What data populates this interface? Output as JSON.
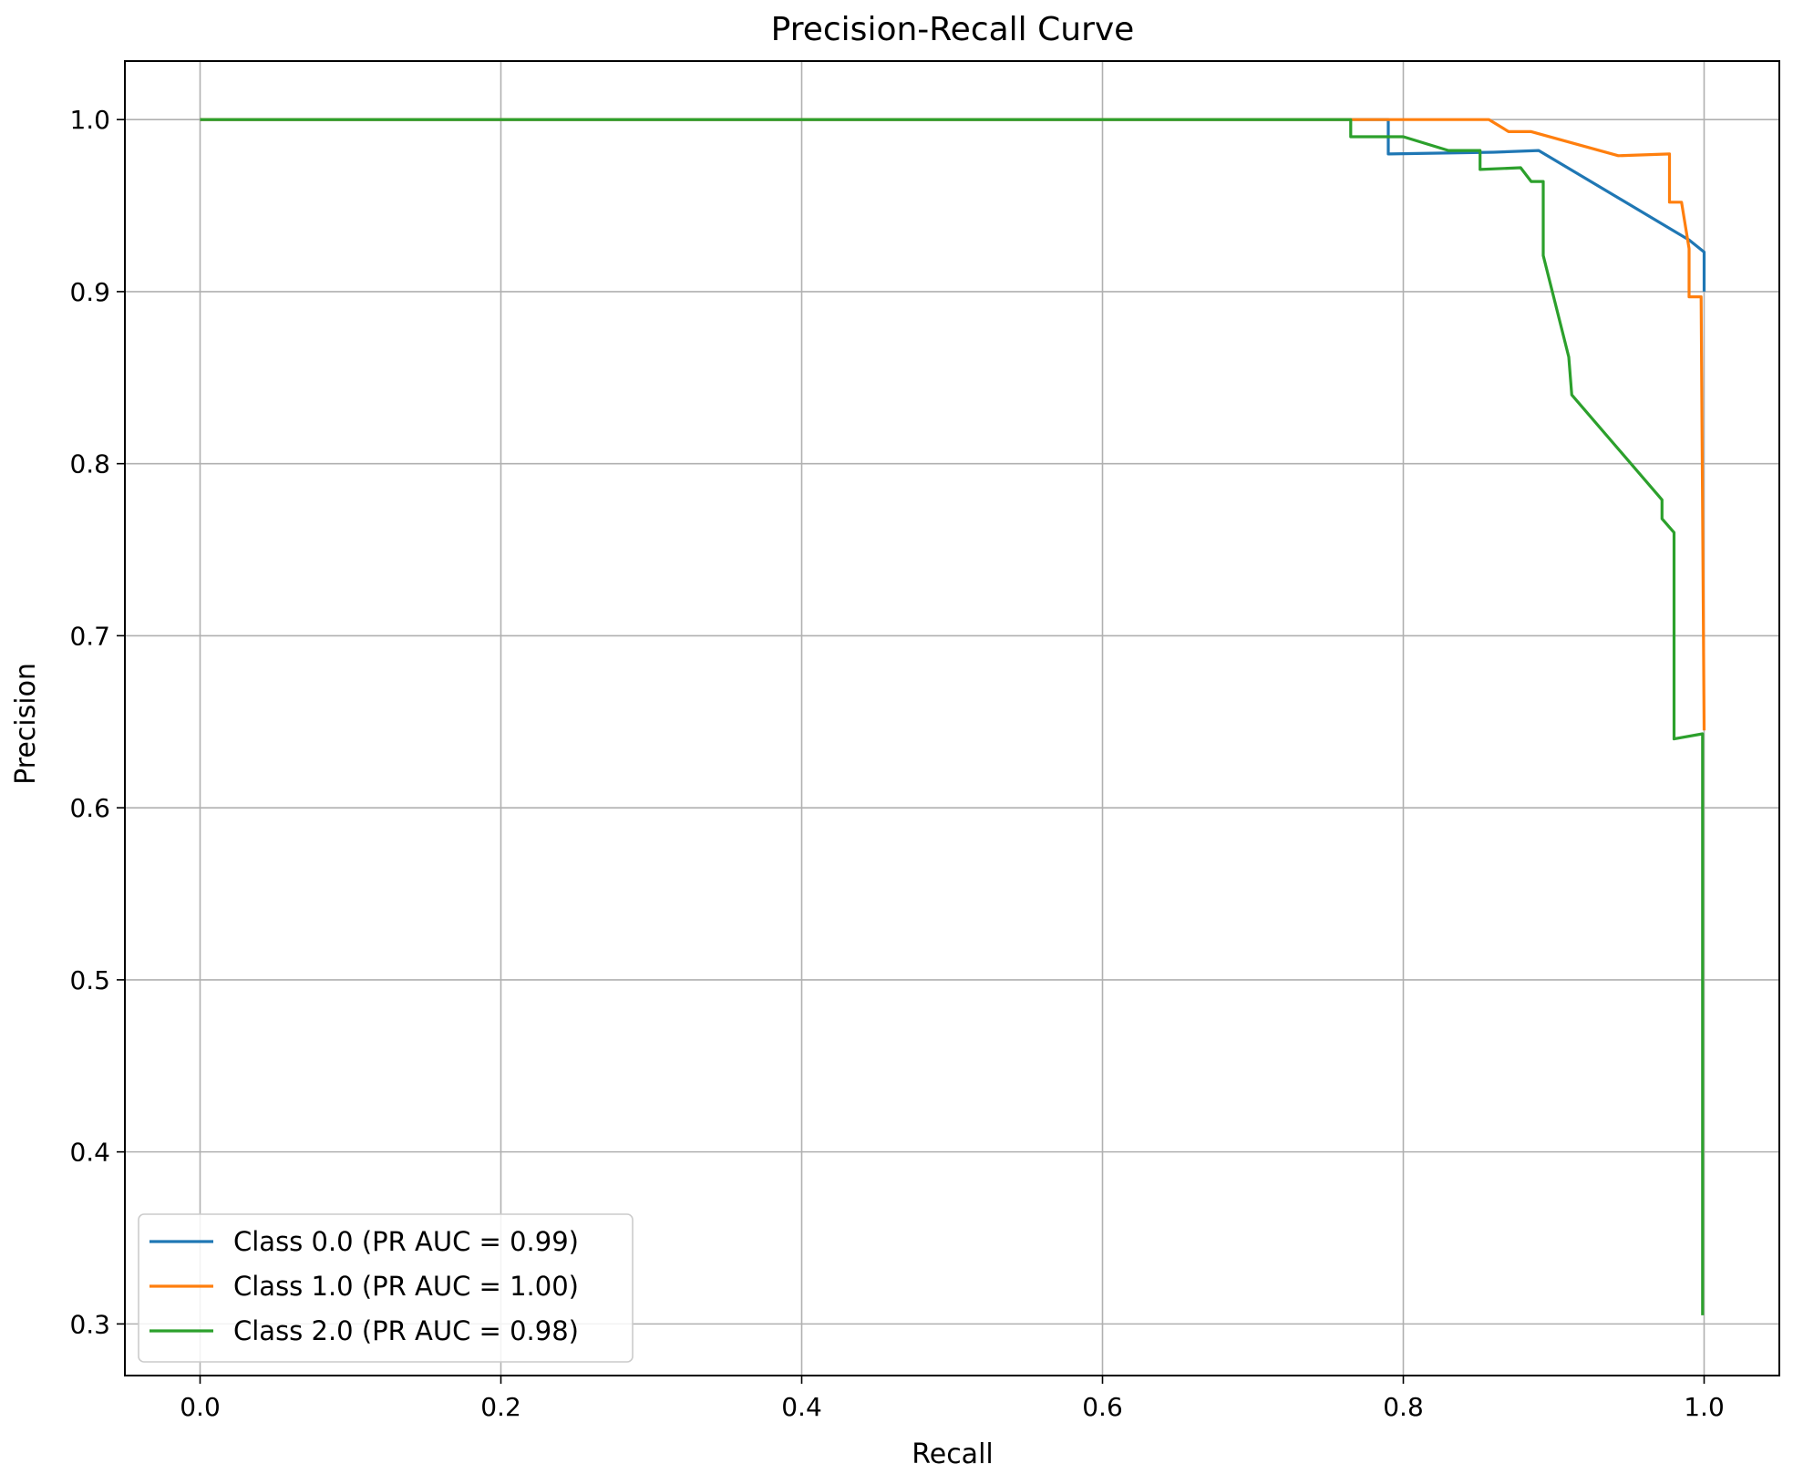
{
  "chart_data": {
    "type": "line",
    "title": "Precision-Recall Curve",
    "xlabel": "Recall",
    "ylabel": "Precision",
    "xlim": [
      -0.05,
      1.05
    ],
    "ylim": [
      0.27,
      1.034
    ],
    "xticks": [
      0.0,
      0.2,
      0.4,
      0.6,
      0.8,
      1.0
    ],
    "xtick_labels": [
      "0.0",
      "0.2",
      "0.4",
      "0.6",
      "0.8",
      "1.0"
    ],
    "yticks": [
      0.3,
      0.4,
      0.5,
      0.6,
      0.7,
      0.8,
      0.9,
      1.0
    ],
    "ytick_labels": [
      "0.3",
      "0.4",
      "0.5",
      "0.6",
      "0.7",
      "0.8",
      "0.9",
      "1.0"
    ],
    "grid": true,
    "legend_position": "lower-left",
    "series": [
      {
        "name": "Class 0.0 (PR AUC = 0.99)",
        "color": "#1f77b4",
        "points": [
          [
            0.0,
            1.0
          ],
          [
            0.79,
            1.0
          ],
          [
            0.79,
            0.98
          ],
          [
            0.86,
            0.981
          ],
          [
            0.89,
            0.982
          ],
          [
            0.99,
            0.93
          ],
          [
            1.0,
            0.923
          ],
          [
            1.0,
            0.9
          ]
        ]
      },
      {
        "name": "Class 1.0 (PR AUC = 1.00)",
        "color": "#ff7f0e",
        "points": [
          [
            0.0,
            1.0
          ],
          [
            0.857,
            1.0
          ],
          [
            0.87,
            0.993
          ],
          [
            0.885,
            0.993
          ],
          [
            0.943,
            0.979
          ],
          [
            0.977,
            0.98
          ],
          [
            0.977,
            0.952
          ],
          [
            0.985,
            0.952
          ],
          [
            0.99,
            0.925
          ],
          [
            0.99,
            0.897
          ],
          [
            0.998,
            0.897
          ],
          [
            1.0,
            0.645
          ]
        ]
      },
      {
        "name": "Class 2.0 (PR AUC = 0.98)",
        "color": "#2ca02c",
        "points": [
          [
            0.0,
            1.0
          ],
          [
            0.765,
            1.0
          ],
          [
            0.765,
            0.99
          ],
          [
            0.8,
            0.99
          ],
          [
            0.83,
            0.982
          ],
          [
            0.851,
            0.982
          ],
          [
            0.851,
            0.971
          ],
          [
            0.878,
            0.972
          ],
          [
            0.885,
            0.964
          ],
          [
            0.893,
            0.964
          ],
          [
            0.893,
            0.921
          ],
          [
            0.91,
            0.862
          ],
          [
            0.912,
            0.84
          ],
          [
            0.972,
            0.779
          ],
          [
            0.972,
            0.768
          ],
          [
            0.98,
            0.76
          ],
          [
            0.98,
            0.64
          ],
          [
            0.999,
            0.643
          ],
          [
            0.999,
            0.305
          ]
        ]
      }
    ]
  }
}
